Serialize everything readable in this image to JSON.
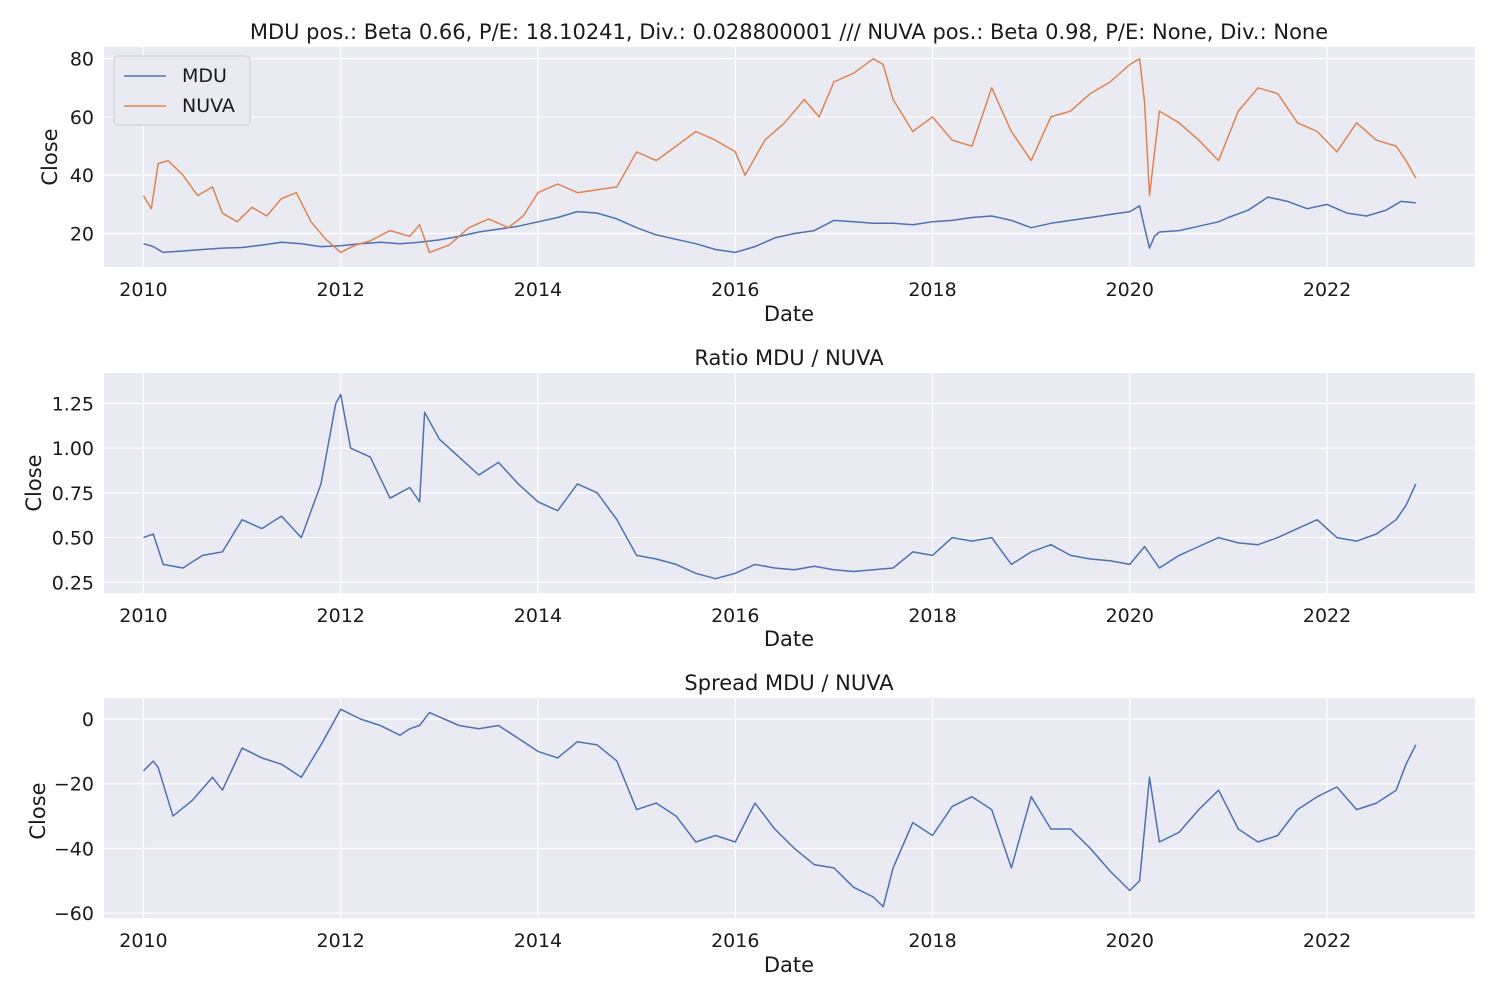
{
  "colors": {
    "mdu": "#4c72b0",
    "nuva": "#dd8452",
    "panel_bg": "#eaeaf2",
    "grid": "#ffffff"
  },
  "chart_data": [
    {
      "type": "line",
      "title": "MDU pos.: Beta 0.66, P/E: 18.10241, Div.: 0.028800001 /// NUVA pos.: Beta 0.98, P/E: None, Div.: None",
      "xlabel": "Date",
      "ylabel": "Close",
      "xlim": [
        2009.6,
        2023.5
      ],
      "ylim": [
        8.5,
        84
      ],
      "xticks": [
        2010,
        2012,
        2014,
        2016,
        2018,
        2020,
        2022
      ],
      "yticks": [
        20,
        40,
        60,
        80
      ],
      "grid": true,
      "legend": "top-left",
      "series": [
        {
          "name": "MDU",
          "color": "#4c72b0",
          "x": [
            2010.0,
            2010.1,
            2010.2,
            2010.4,
            2010.6,
            2010.8,
            2011.0,
            2011.2,
            2011.4,
            2011.6,
            2011.8,
            2012.0,
            2012.2,
            2012.4,
            2012.6,
            2012.8,
            2013.0,
            2013.2,
            2013.4,
            2013.6,
            2013.8,
            2014.0,
            2014.2,
            2014.4,
            2014.6,
            2014.8,
            2015.0,
            2015.2,
            2015.4,
            2015.6,
            2015.8,
            2016.0,
            2016.2,
            2016.4,
            2016.6,
            2016.8,
            2017.0,
            2017.2,
            2017.4,
            2017.6,
            2017.8,
            2018.0,
            2018.2,
            2018.4,
            2018.6,
            2018.8,
            2019.0,
            2019.2,
            2019.4,
            2019.6,
            2019.8,
            2020.0,
            2020.1,
            2020.15,
            2020.2,
            2020.25,
            2020.3,
            2020.5,
            2020.7,
            2020.9,
            2021.0,
            2021.2,
            2021.4,
            2021.6,
            2021.8,
            2022.0,
            2022.2,
            2022.4,
            2022.6,
            2022.75,
            2022.9
          ],
          "values": [
            16.5,
            15.5,
            13.5,
            14.0,
            14.5,
            15.0,
            15.2,
            16.0,
            17.0,
            16.5,
            15.5,
            15.8,
            16.5,
            17.0,
            16.5,
            17.0,
            17.8,
            19.0,
            20.5,
            21.5,
            22.5,
            24.0,
            25.5,
            27.5,
            27.0,
            25.0,
            22.0,
            19.5,
            18.0,
            16.5,
            14.5,
            13.5,
            15.5,
            18.5,
            20.0,
            21.0,
            24.5,
            24.0,
            23.5,
            23.5,
            23.0,
            24.0,
            24.5,
            25.5,
            26.0,
            24.5,
            22.0,
            23.5,
            24.5,
            25.5,
            26.5,
            27.5,
            29.5,
            22.0,
            15.0,
            19.0,
            20.5,
            21.0,
            22.5,
            24.0,
            25.5,
            28.0,
            32.5,
            31.0,
            28.5,
            30.0,
            27.0,
            26.0,
            28.0,
            31.0,
            30.5
          ]
        },
        {
          "name": "NUVA",
          "color": "#dd8452",
          "x": [
            2010.0,
            2010.08,
            2010.15,
            2010.25,
            2010.4,
            2010.55,
            2010.7,
            2010.8,
            2010.95,
            2011.1,
            2011.25,
            2011.4,
            2011.55,
            2011.7,
            2011.85,
            2012.0,
            2012.15,
            2012.3,
            2012.5,
            2012.7,
            2012.8,
            2012.9,
            2013.1,
            2013.3,
            2013.5,
            2013.7,
            2013.85,
            2014.0,
            2014.2,
            2014.4,
            2014.6,
            2014.8,
            2015.0,
            2015.2,
            2015.4,
            2015.6,
            2015.8,
            2016.0,
            2016.1,
            2016.3,
            2016.5,
            2016.7,
            2016.85,
            2017.0,
            2017.2,
            2017.4,
            2017.5,
            2017.6,
            2017.8,
            2018.0,
            2018.2,
            2018.4,
            2018.6,
            2018.8,
            2019.0,
            2019.2,
            2019.4,
            2019.6,
            2019.8,
            2020.0,
            2020.1,
            2020.15,
            2020.2,
            2020.3,
            2020.5,
            2020.7,
            2020.9,
            2021.1,
            2021.3,
            2021.5,
            2021.7,
            2021.9,
            2022.1,
            2022.3,
            2022.5,
            2022.7,
            2022.8,
            2022.9
          ],
          "values": [
            33.0,
            28.5,
            44.0,
            45.0,
            40.0,
            33.0,
            36.0,
            27.0,
            24.0,
            29.0,
            26.0,
            32.0,
            34.0,
            24.0,
            18.0,
            13.5,
            16.0,
            17.5,
            21.0,
            19.0,
            23.0,
            13.5,
            16.0,
            22.0,
            25.0,
            22.0,
            26.0,
            34.0,
            37.0,
            34.0,
            35.0,
            36.0,
            48.0,
            45.0,
            50.0,
            55.0,
            52.0,
            48.0,
            40.0,
            52.0,
            58.0,
            66.0,
            60.0,
            72.0,
            75.0,
            80.0,
            78.0,
            66.0,
            55.0,
            60.0,
            52.0,
            50.0,
            70.0,
            55.0,
            45.0,
            60.0,
            62.0,
            68.0,
            72.0,
            78.0,
            80.0,
            65.0,
            33.0,
            62.0,
            58.0,
            52.0,
            45.0,
            62.0,
            70.0,
            68.0,
            58.0,
            55.0,
            48.0,
            58.0,
            52.0,
            50.0,
            45.0,
            39.0
          ]
        }
      ]
    },
    {
      "type": "line",
      "title": "Ratio MDU / NUVA",
      "xlabel": "Date",
      "ylabel": "Close",
      "xlim": [
        2009.6,
        2023.5
      ],
      "ylim": [
        0.19,
        1.42
      ],
      "xticks": [
        2010,
        2012,
        2014,
        2016,
        2018,
        2020,
        2022
      ],
      "yticks": [
        0.25,
        0.5,
        0.75,
        1.0,
        1.25
      ],
      "ytick_labels": [
        "0.25",
        "0.50",
        "0.75",
        "1.00",
        "1.25"
      ],
      "grid": true,
      "series": [
        {
          "color": "#4c72b0",
          "x": [
            2010.0,
            2010.1,
            2010.2,
            2010.4,
            2010.6,
            2010.8,
            2011.0,
            2011.2,
            2011.4,
            2011.6,
            2011.8,
            2011.95,
            2012.0,
            2012.1,
            2012.3,
            2012.5,
            2012.7,
            2012.8,
            2012.85,
            2013.0,
            2013.2,
            2013.4,
            2013.6,
            2013.8,
            2014.0,
            2014.2,
            2014.4,
            2014.6,
            2014.8,
            2015.0,
            2015.2,
            2015.4,
            2015.6,
            2015.8,
            2016.0,
            2016.2,
            2016.4,
            2016.6,
            2016.8,
            2017.0,
            2017.2,
            2017.4,
            2017.6,
            2017.8,
            2018.0,
            2018.2,
            2018.4,
            2018.6,
            2018.8,
            2019.0,
            2019.2,
            2019.4,
            2019.6,
            2019.8,
            2020.0,
            2020.15,
            2020.3,
            2020.5,
            2020.7,
            2020.9,
            2021.1,
            2021.3,
            2021.5,
            2021.7,
            2021.9,
            2022.1,
            2022.3,
            2022.5,
            2022.7,
            2022.8,
            2022.9
          ],
          "values": [
            0.5,
            0.52,
            0.35,
            0.33,
            0.4,
            0.42,
            0.6,
            0.55,
            0.62,
            0.5,
            0.8,
            1.25,
            1.3,
            1.0,
            0.95,
            0.72,
            0.78,
            0.7,
            1.2,
            1.05,
            0.95,
            0.85,
            0.92,
            0.8,
            0.7,
            0.65,
            0.8,
            0.75,
            0.6,
            0.4,
            0.38,
            0.35,
            0.3,
            0.27,
            0.3,
            0.35,
            0.33,
            0.32,
            0.34,
            0.32,
            0.31,
            0.32,
            0.33,
            0.42,
            0.4,
            0.5,
            0.48,
            0.5,
            0.35,
            0.42,
            0.46,
            0.4,
            0.38,
            0.37,
            0.35,
            0.45,
            0.33,
            0.4,
            0.45,
            0.5,
            0.47,
            0.46,
            0.5,
            0.55,
            0.6,
            0.5,
            0.48,
            0.52,
            0.6,
            0.68,
            0.8
          ]
        }
      ]
    },
    {
      "type": "line",
      "title": "Spread MDU / NUVA",
      "xlabel": "Date",
      "ylabel": "Close",
      "xlim": [
        2009.6,
        2023.5
      ],
      "ylim": [
        -61.5,
        6.5
      ],
      "xticks": [
        2010,
        2012,
        2014,
        2016,
        2018,
        2020,
        2022
      ],
      "yticks": [
        -60,
        -40,
        -20,
        0
      ],
      "ytick_labels": [
        "−60",
        "−40",
        "−20",
        "0"
      ],
      "grid": true,
      "series": [
        {
          "color": "#4c72b0",
          "x": [
            2010.0,
            2010.1,
            2010.15,
            2010.3,
            2010.5,
            2010.7,
            2010.8,
            2011.0,
            2011.2,
            2011.4,
            2011.6,
            2011.8,
            2012.0,
            2012.2,
            2012.4,
            2012.6,
            2012.7,
            2012.8,
            2012.9,
            2013.2,
            2013.4,
            2013.6,
            2013.8,
            2014.0,
            2014.2,
            2014.4,
            2014.6,
            2014.8,
            2015.0,
            2015.2,
            2015.4,
            2015.6,
            2015.8,
            2016.0,
            2016.2,
            2016.4,
            2016.6,
            2016.8,
            2017.0,
            2017.2,
            2017.4,
            2017.5,
            2017.6,
            2017.8,
            2018.0,
            2018.2,
            2018.4,
            2018.6,
            2018.8,
            2019.0,
            2019.2,
            2019.4,
            2019.6,
            2019.8,
            2020.0,
            2020.1,
            2020.2,
            2020.3,
            2020.5,
            2020.7,
            2020.9,
            2021.1,
            2021.3,
            2021.5,
            2021.7,
            2021.9,
            2022.1,
            2022.3,
            2022.5,
            2022.7,
            2022.8,
            2022.9
          ],
          "values": [
            -16.0,
            -13.0,
            -15.0,
            -30.0,
            -25.0,
            -18.0,
            -22.0,
            -9.0,
            -12.0,
            -14.0,
            -18.0,
            -8.0,
            3.0,
            0.0,
            -2.0,
            -5.0,
            -3.0,
            -2.0,
            2.0,
            -2.0,
            -3.0,
            -2.0,
            -6.0,
            -10.0,
            -12.0,
            -7.0,
            -8.0,
            -13.0,
            -28.0,
            -26.0,
            -30.0,
            -38.0,
            -36.0,
            -38.0,
            -26.0,
            -34.0,
            -40.0,
            -45.0,
            -46.0,
            -52.0,
            -55.0,
            -58.0,
            -46.0,
            -32.0,
            -36.0,
            -27.0,
            -24.0,
            -28.0,
            -46.0,
            -24.0,
            -34.0,
            -34.0,
            -40.0,
            -47.0,
            -53.0,
            -50.0,
            -18.0,
            -38.0,
            -35.0,
            -28.0,
            -22.0,
            -34.0,
            -38.0,
            -36.0,
            -28.0,
            -24.0,
            -21.0,
            -28.0,
            -26.0,
            -22.0,
            -14.0,
            -8.0
          ]
        }
      ]
    }
  ]
}
